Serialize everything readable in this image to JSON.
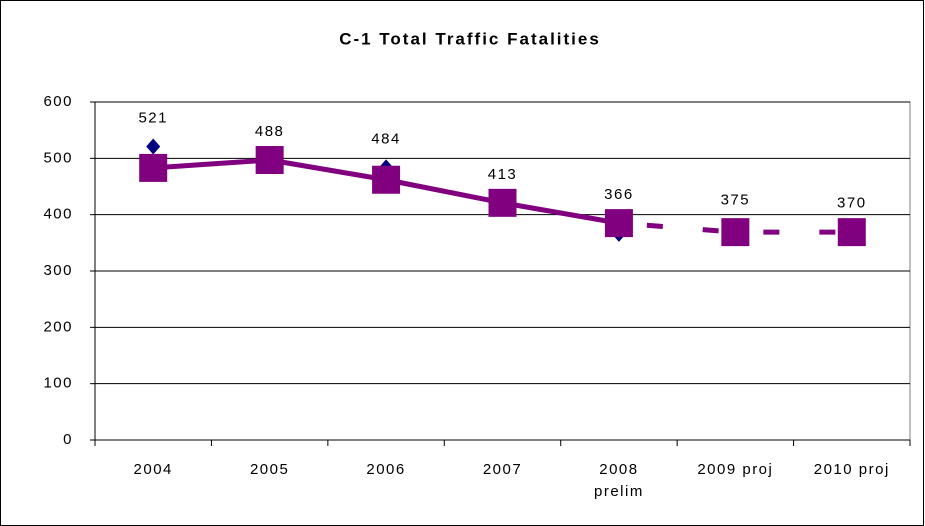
{
  "chart_data": {
    "type": "line",
    "title": "C-1 Total Traffic Fatalities",
    "categories": [
      "2004",
      "2005",
      "2006",
      "2007",
      "2008\nprelim",
      "2009 proj",
      "2010 proj"
    ],
    "series": [
      {
        "color": "#000080",
        "marker": "diamond",
        "line": false,
        "data_labels": true,
        "values": [
          521,
          488,
          484,
          413,
          366,
          375,
          370
        ]
      },
      {
        "color": "#800080",
        "marker": "square",
        "line": true,
        "segment_styles": [
          "solid",
          "solid",
          "solid",
          "solid",
          "dashed",
          "dashed"
        ],
        "values": [
          483,
          497,
          462,
          421,
          385,
          369,
          369
        ]
      }
    ],
    "ylim": [
      0,
      600
    ],
    "yticks": [
      0,
      100,
      200,
      300,
      400,
      500,
      600
    ],
    "grid": true
  }
}
